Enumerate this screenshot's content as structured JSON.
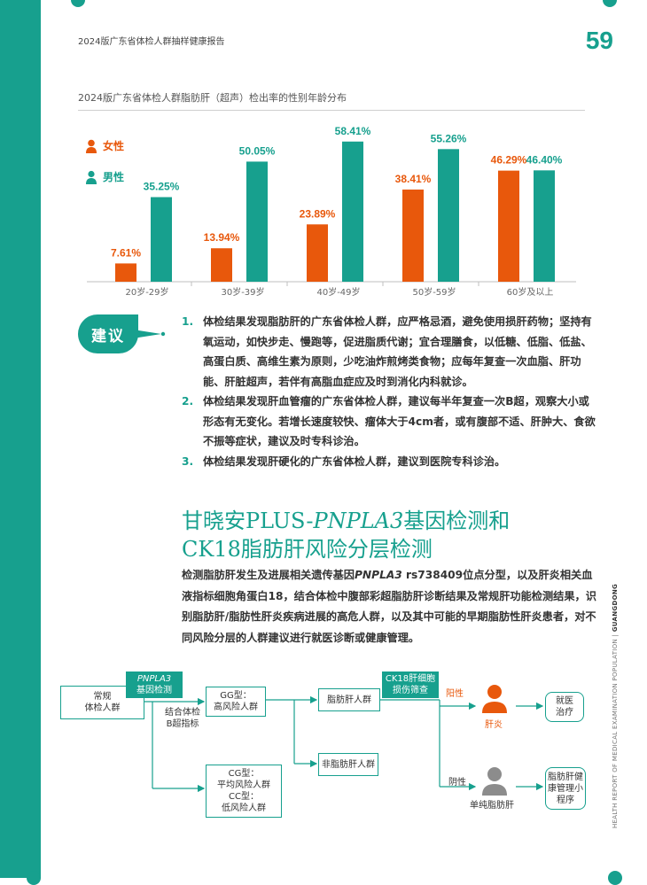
{
  "header": {
    "report_title": "2024版广东省体检人群抽样健康报告",
    "page_number": "59"
  },
  "chart_data": {
    "type": "bar",
    "title": "2024版广东省体检人群脂肪肝（超声）检出率的性别年龄分布",
    "categories": [
      "20岁-29岁",
      "30岁-39岁",
      "40岁-49岁",
      "50岁-59岁",
      "60岁及以上"
    ],
    "series": [
      {
        "name": "女性",
        "color": "#e8580c",
        "values": [
          7.61,
          13.94,
          23.89,
          38.41,
          46.29
        ],
        "labels": [
          "7.61%",
          "13.94%",
          "23.89%",
          "38.41%",
          "46.29%"
        ]
      },
      {
        "name": "男性",
        "color": "#17a08e",
        "values": [
          35.25,
          50.05,
          58.41,
          55.26,
          46.4
        ],
        "labels": [
          "35.25%",
          "50.05%",
          "58.41%",
          "55.26%",
          "46.40%"
        ]
      }
    ],
    "ylim": [
      0,
      60
    ],
    "legend": "top-left",
    "grid": false
  },
  "suggestion": {
    "badge": "建议",
    "items": [
      {
        "num": "1.",
        "text": "体检结果发现脂肪肝的广东省体检人群，应严格忌酒，避免使用损肝药物；坚持有氧运动，如快步走、慢跑等，促进脂质代谢；宜合理膳食，以低糖、低脂、低盐、高蛋白质、高维生素为原则，少吃油炸煎烤类食物；应每年复查一次血脂、肝功能、肝脏超声，若伴有高脂血症应及时到消化内科就诊。"
      },
      {
        "num": "2.",
        "text": "体检结果发现肝血管瘤的广东省体检人群，建议每半年复查一次B超，观察大小或形态有无变化。若增长速度较快、瘤体大于4cm者，或有腹部不适、肝肿大、食欲不振等症状，建议及时专科诊治。"
      },
      {
        "num": "3.",
        "text": "体检结果发现肝硬化的广东省体检人群，建议到医院专科诊治。"
      }
    ]
  },
  "section": {
    "title_line1_a": "甘晓安PLUS-",
    "title_line1_b": "PNPLA3",
    "title_line1_c": "基因检测和",
    "title_line2": "CK18脂肪肝风险分层检测",
    "para_a": "检测脂肪肝发生及进展相关遗传基因",
    "para_b": "PNPLA3",
    "para_c": " rs738409位点分型，以及肝炎相关血液指标细胞角蛋白18，结合体检中腹部彩超脂肪肝诊断结果及常规肝功能检测结果，识别脂肪肝/脂肪性肝炎疾病进展的高危人群，以及其中可能的早期脂肪性肝炎患者，对不同风险分层的人群建议进行就医诊断或健康管理。"
  },
  "flow": {
    "start": "常规\n体检人群",
    "tag1_a": "PNPLA3",
    "tag1_b": "基因检测",
    "label_combine": "结合体检\nB超指标",
    "gg": "GG型：\n高风险人群",
    "cg": "CG型：\n平均风险人群\nCC型：\n低风险人群",
    "fatty": "脂肪肝人群",
    "nonfatty": "非脂肪肝人群",
    "tag2": "CK18肝细胞\n损伤筛查",
    "positive": "阳性",
    "negative": "阴性",
    "hepatitis": "肝炎",
    "simple_fatty": "单纯脂肪肝",
    "treat": "就医\n治疗",
    "manage": "脂肪肝健\n康管理小\n程序"
  },
  "side": {
    "text_a": "HEALTH REPORT OF MEDICAL EXAMINATION POPULATION | ",
    "text_b": "GUANGDONG"
  }
}
